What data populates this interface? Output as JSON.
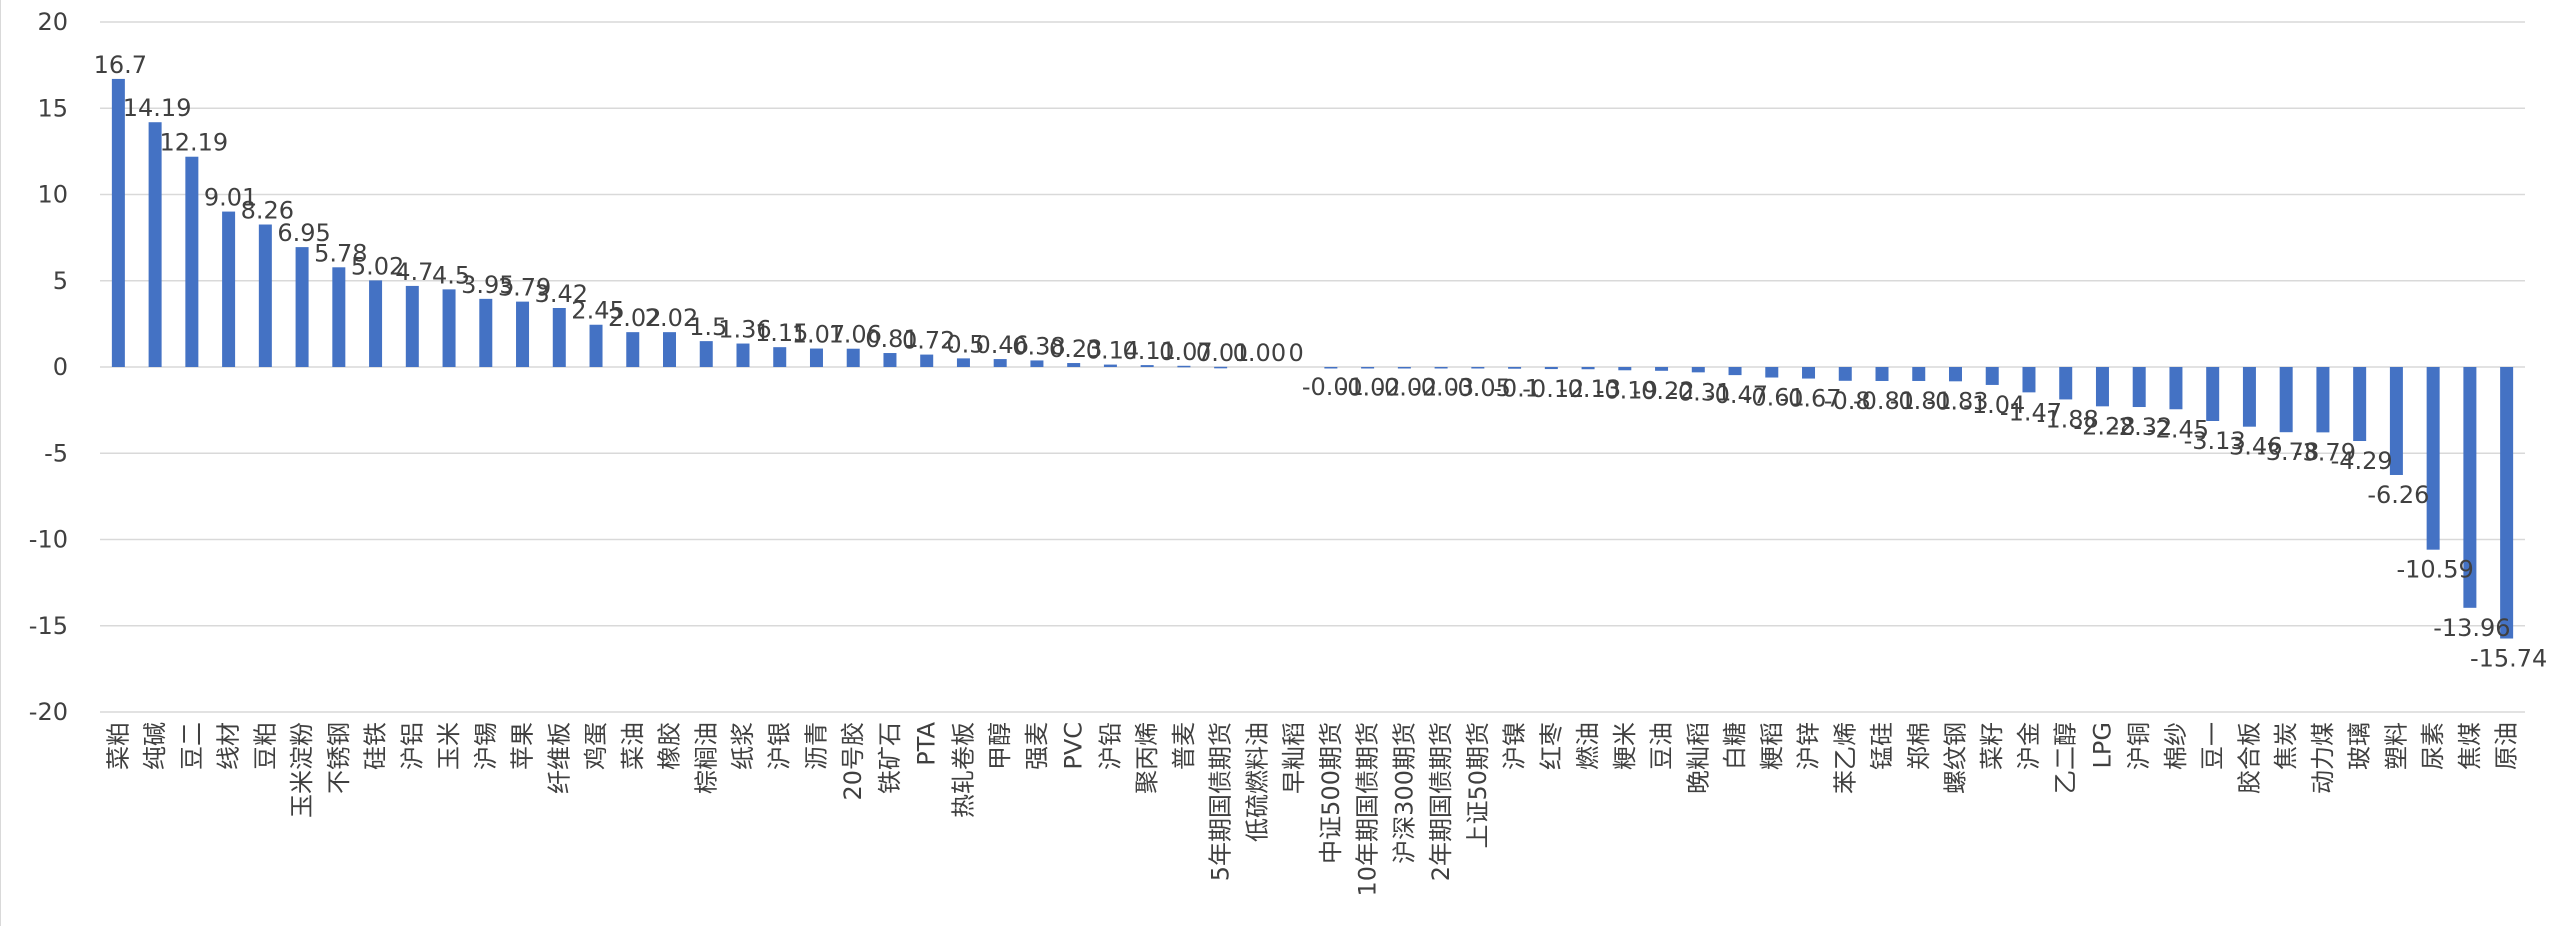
{
  "chart_data": {
    "type": "bar",
    "title": "",
    "xlabel": "",
    "ylabel": "",
    "ylim": [
      -20,
      20
    ],
    "yticks": [
      20,
      15,
      10,
      5,
      0,
      -5,
      -10,
      -15,
      -20
    ],
    "grid": true,
    "legend": "none",
    "bar_color": "#4472C4",
    "categories": [
      "菜粕",
      "纯碱",
      "豆二",
      "线材",
      "豆粕",
      "玉米淀粉",
      "不锈钢",
      "硅铁",
      "沪铝",
      "玉米",
      "沪锡",
      "苹果",
      "纤维板",
      "鸡蛋",
      "菜油",
      "橡胶",
      "棕榈油",
      "纸浆",
      "沪银",
      "沥青",
      "20号胶",
      "铁矿石",
      "PTA",
      "热轧卷板",
      "甲醇",
      "强麦",
      "PVC",
      "沪铅",
      "聚丙烯",
      "普麦",
      "5年期国债期货",
      "低硫燃料油",
      "早籼稻",
      "中证500期货",
      "10年期国债期货",
      "沪深300期货",
      "2年期国债期货",
      "上证50期货",
      "沪镍",
      "红枣",
      "燃油",
      "粳米",
      "豆油",
      "晚籼稻",
      "白糖",
      "粳稻",
      "沪锌",
      "苯乙烯",
      "锰硅",
      "郑棉",
      "螺纹钢",
      "菜籽",
      "沪金",
      "乙二醇",
      "LPG",
      "沪铜",
      "棉纱",
      "豆一",
      "胶合板",
      "焦炭",
      "动力煤",
      "玻璃",
      "塑料",
      "尿素",
      "焦煤",
      "原油"
    ],
    "values": [
      16.7,
      14.19,
      12.19,
      9.01,
      8.26,
      6.95,
      5.78,
      5.02,
      4.7,
      4.5,
      3.95,
      3.79,
      3.42,
      2.45,
      2.02,
      2.02,
      1.5,
      1.36,
      1.15,
      1.07,
      1.06,
      0.81,
      0.72,
      0.5,
      0.46,
      0.38,
      0.23,
      0.14,
      0.11,
      0.07,
      0.01,
      0,
      0,
      -0.01,
      -0.02,
      -0.02,
      -0.03,
      -0.05,
      -0.1,
      -0.12,
      -0.13,
      -0.19,
      -0.22,
      -0.31,
      -0.47,
      -0.61,
      -0.67,
      -0.8,
      -0.81,
      -0.81,
      -0.83,
      -1.04,
      -1.47,
      -1.88,
      -2.28,
      -2.32,
      -2.45,
      -3.13,
      -3.46,
      -3.78,
      -3.79,
      -4.29,
      -6.26,
      -10.59,
      -13.96,
      -15.74
    ],
    "value_labels": [
      "16.7",
      "14.19",
      "12.19",
      "9.01",
      "8.26",
      "6.95",
      "5.78",
      "5.02",
      "4.7",
      "4.5",
      "3.95",
      "3.79",
      "3.42",
      "2.45",
      "2.02",
      "2.02",
      "1.5",
      "1.36",
      "1.15",
      "1.07",
      "1.06",
      "0.81",
      "0.72",
      "0.5",
      "0.46",
      "0.38",
      "0.23",
      "0.14",
      "0.11",
      "0.07",
      "0.01",
      "0.00",
      "0",
      "-0.01",
      "-0.02",
      "-0.02",
      "-0.03",
      "-0.05",
      "-0.1",
      "-0.12",
      "-0.13",
      "-0.19",
      "-0.22",
      "-0.31",
      "-0.47",
      "-0.61",
      "-0.67",
      "-0.8",
      "-0.81",
      "-0.81",
      "-0.83",
      "-1.04",
      "-1.47",
      "-1.88",
      "-2.28",
      "-2.32",
      "-2.45",
      "-3.13",
      "-3.46",
      "-3.78",
      "-3.79",
      "-4.29",
      "-6.26",
      "-10.59",
      "-13.96",
      "-15.74"
    ]
  }
}
